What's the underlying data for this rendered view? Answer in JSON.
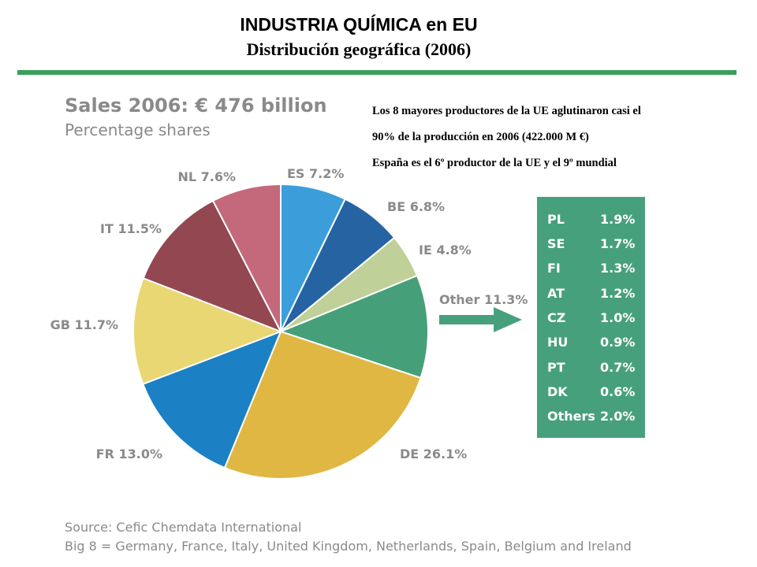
{
  "slide": {
    "title": "INDUSTRIA QUÍMICA en EU",
    "subtitle": "Distribución geográfica (2006)",
    "notes": [
      "Los 8 mayores productores de la UE aglutinaron casi el",
      "90% de la producción en 2006 (422.000 M €)",
      "España es el 6º productor de la UE y el 9º mundial"
    ],
    "source_lines": [
      "Source: Cefic Chemdata International",
      "Big 8 = Germany, France, Italy, United Kingdom, Netherlands, Spain, Belgium and Ireland"
    ],
    "accent_color": "#3aa05a"
  },
  "chart_data": {
    "type": "pie",
    "title": "Sales 2006: € 476 billion",
    "subtitle": "Percentage shares",
    "slices": [
      {
        "label": "ES 7.2%",
        "code": "ES",
        "value": 7.2,
        "color": "#3b9edb"
      },
      {
        "label": "BE 6.8%",
        "code": "BE",
        "value": 6.8,
        "color": "#2563a3"
      },
      {
        "label": "IE 4.8%",
        "code": "IE",
        "value": 4.8,
        "color": "#bfd098"
      },
      {
        "label": "Other 11.3%",
        "code": "Other",
        "value": 11.3,
        "color": "#45a07a"
      },
      {
        "label": "DE 26.1%",
        "code": "DE",
        "value": 26.1,
        "color": "#e0b742"
      },
      {
        "label": "FR 13.0%",
        "code": "FR",
        "value": 13.0,
        "color": "#1c80c4"
      },
      {
        "label": "GB 11.7%",
        "code": "GB",
        "value": 11.7,
        "color": "#e8d773"
      },
      {
        "label": "IT 11.5%",
        "code": "IT",
        "value": 11.5,
        "color": "#924751"
      },
      {
        "label": "NL 7.6%",
        "code": "NL",
        "value": 7.6,
        "color": "#c3697b"
      }
    ],
    "other_breakdown": [
      {
        "code": "PL",
        "value": "1.9%"
      },
      {
        "code": "SE",
        "value": "1.7%"
      },
      {
        "code": "FI",
        "value": "1.3%"
      },
      {
        "code": "AT",
        "value": "1.2%"
      },
      {
        "code": "CZ",
        "value": "1.0%"
      },
      {
        "code": "HU",
        "value": "0.9%"
      },
      {
        "code": "PT",
        "value": "0.7%"
      },
      {
        "code": "DK",
        "value": "0.6%"
      },
      {
        "code": "Others",
        "value": "2.0%"
      }
    ],
    "label_color": "#8a8a8a",
    "breakdown_color": "#47a07c"
  }
}
